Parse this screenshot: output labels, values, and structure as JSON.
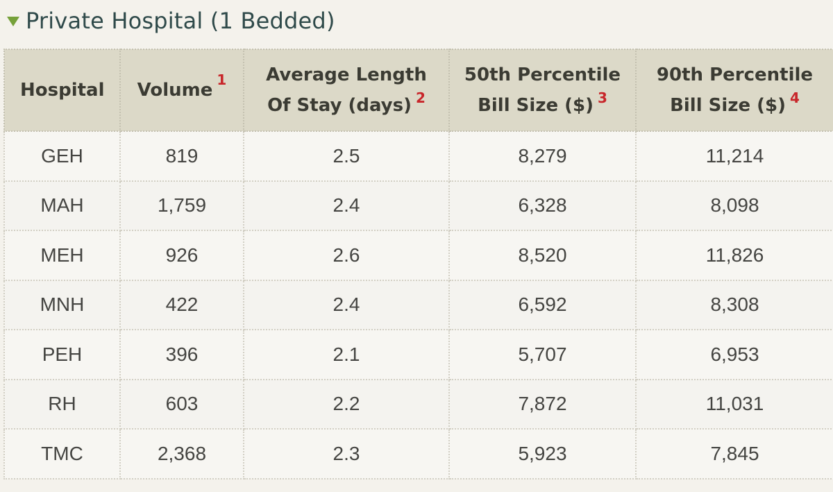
{
  "section": {
    "title": "Private Hospital (1 Bedded)"
  },
  "table": {
    "headers": [
      {
        "label_line1": "Hospital",
        "label_line2": "",
        "footnote": ""
      },
      {
        "label_line1": "Volume",
        "label_line2": "",
        "footnote": "1"
      },
      {
        "label_line1": "Average Length",
        "label_line2": "Of Stay (days)",
        "footnote": "2"
      },
      {
        "label_line1": "50th Percentile",
        "label_line2": "Bill Size ($)",
        "footnote": "3"
      },
      {
        "label_line1": "90th Percentile",
        "label_line2": "Bill Size ($)",
        "footnote": "4"
      }
    ],
    "rows": [
      [
        "GEH",
        "819",
        "2.5",
        "8,279",
        "11,214"
      ],
      [
        "MAH",
        "1,759",
        "2.4",
        "6,328",
        "8,098"
      ],
      [
        "MEH",
        "926",
        "2.6",
        "8,520",
        "11,826"
      ],
      [
        "MNH",
        "422",
        "2.4",
        "6,592",
        "8,308"
      ],
      [
        "PEH",
        "396",
        "2.1",
        "5,707",
        "6,953"
      ],
      [
        "RH",
        "603",
        "2.2",
        "7,872",
        "11,031"
      ],
      [
        "TMC",
        "2,368",
        "2.3",
        "5,923",
        "7,845"
      ]
    ]
  },
  "colors": {
    "header_bg": "#dcd9c8",
    "footnote": "#c8262a",
    "title": "#2f4a4a",
    "triangle": "#76a13a"
  }
}
